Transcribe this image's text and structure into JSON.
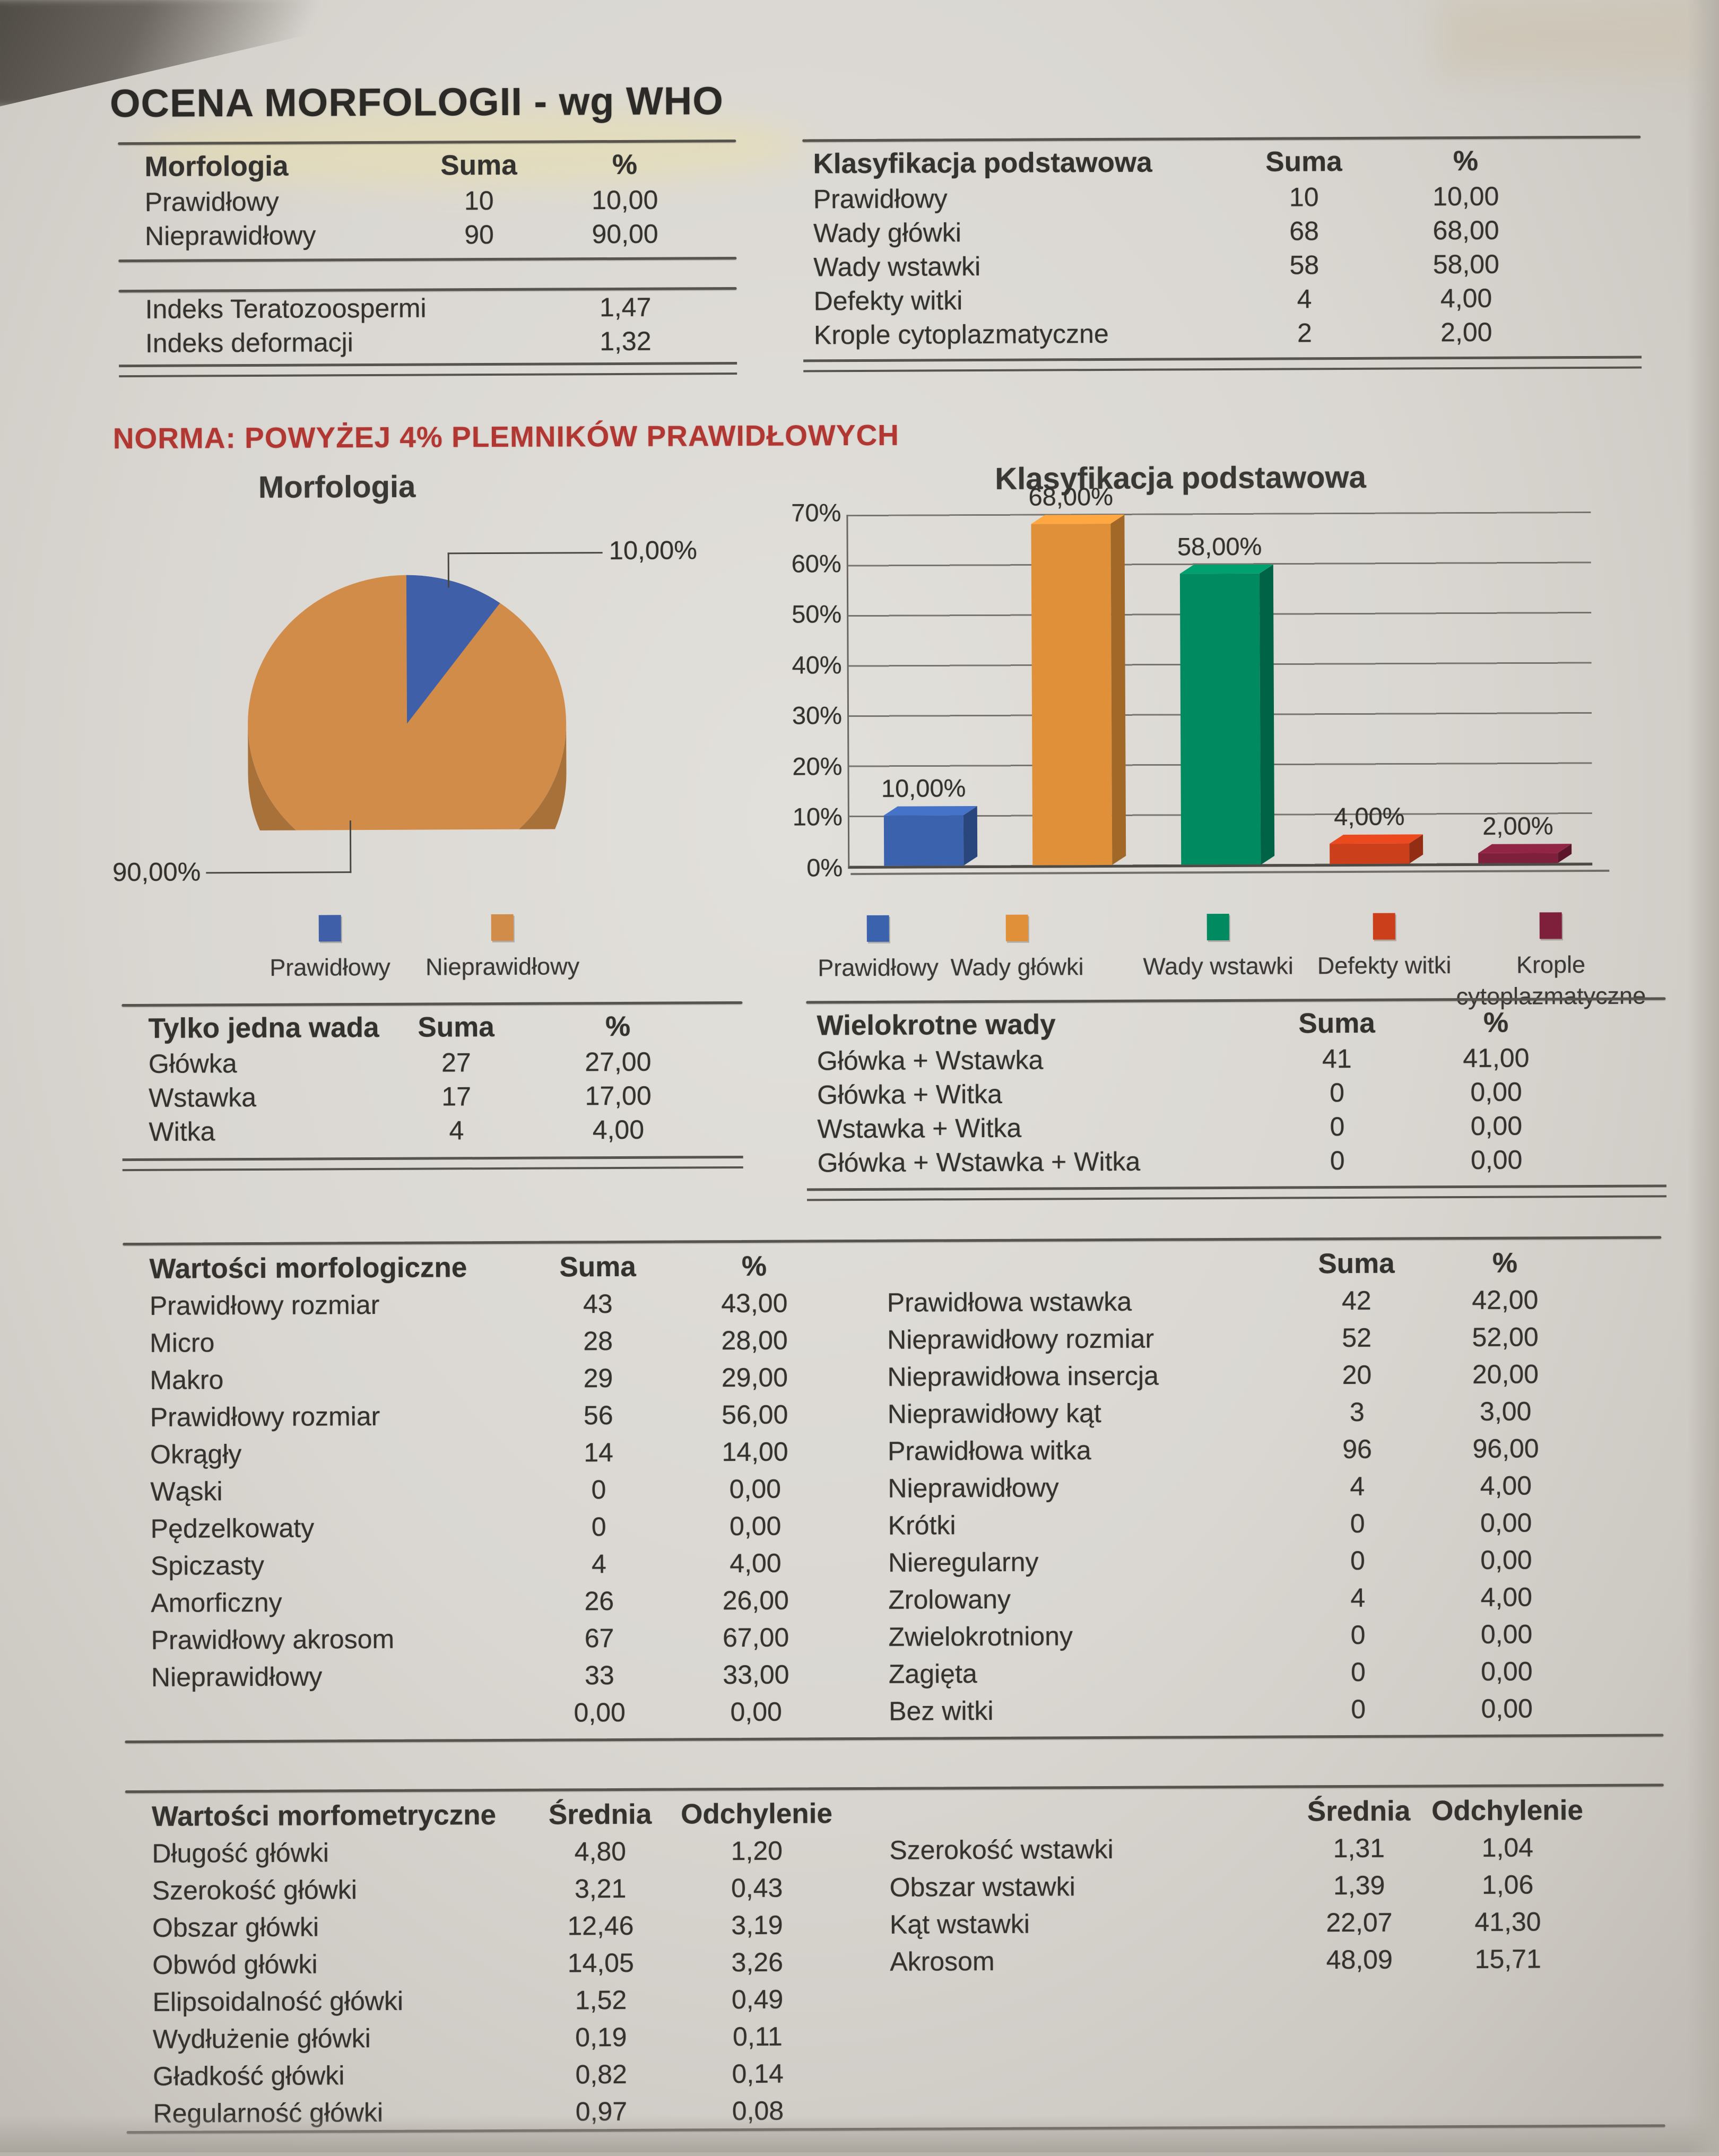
{
  "page": {
    "title": "OCENA MORFOLOGII - wg WHO",
    "norm_note": "NORMA: POWYŻEJ 4% PLEMNIKÓW PRAWIDŁOWYCH"
  },
  "colors": {
    "rule": "#57534d",
    "red_text": "#b13733",
    "pie_blue": "#3f5fa8",
    "pie_orange": "#d28c4a",
    "pie_side": "#a9713a"
  },
  "tables": {
    "morfologia": {
      "headers": [
        "Morfologia",
        "Suma",
        "%"
      ],
      "rows": [
        [
          "Prawidłowy",
          "10",
          "10,00"
        ],
        [
          "Nieprawidłowy",
          "90",
          "90,00"
        ]
      ],
      "indexes": [
        [
          "Indeks Teratozoospermi",
          "1,47"
        ],
        [
          "Indeks deformacji",
          "1,32"
        ]
      ]
    },
    "klasyfikacja": {
      "headers": [
        "Klasyfikacja podstawowa",
        "Suma",
        "%"
      ],
      "rows": [
        [
          "Prawidłowy",
          "10",
          "10,00"
        ],
        [
          "Wady główki",
          "68",
          "68,00"
        ],
        [
          "Wady wstawki",
          "58",
          "58,00"
        ],
        [
          "Defekty witki",
          "4",
          "4,00"
        ],
        [
          "Krople cytoplazmatyczne",
          "2",
          "2,00"
        ]
      ]
    },
    "jedna_wada": {
      "headers": [
        "Tylko jedna wada",
        "Suma",
        "%"
      ],
      "rows": [
        [
          "Główka",
          "27",
          "27,00"
        ],
        [
          "Wstawka",
          "17",
          "17,00"
        ],
        [
          "Witka",
          "4",
          "4,00"
        ]
      ]
    },
    "wielokrotne": {
      "headers": [
        "Wielokrotne wady",
        "Suma",
        "%"
      ],
      "rows": [
        [
          "Główka + Wstawka",
          "41",
          "41,00"
        ],
        [
          "Główka + Witka",
          "0",
          "0,00"
        ],
        [
          "Wstawka + Witka",
          "0",
          "0,00"
        ],
        [
          "Główka + Wstawka + Witka",
          "0",
          "0,00"
        ]
      ]
    },
    "morfologiczne": {
      "title": "Wartości morfologiczne",
      "headers": [
        "Suma",
        "%"
      ],
      "left": [
        [
          "Prawidłowy rozmiar",
          "43",
          "43,00"
        ],
        [
          "Micro",
          "28",
          "28,00"
        ],
        [
          "Makro",
          "29",
          "29,00"
        ],
        [
          "Prawidłowy rozmiar",
          "56",
          "56,00"
        ],
        [
          "Okrągły",
          "14",
          "14,00"
        ],
        [
          "Wąski",
          "0",
          "0,00"
        ],
        [
          "Pędzelkowaty",
          "0",
          "0,00"
        ],
        [
          "Spiczasty",
          "4",
          "4,00"
        ],
        [
          "Amorficzny",
          "26",
          "26,00"
        ],
        [
          "Prawidłowy akrosom",
          "67",
          "67,00"
        ],
        [
          "Nieprawidłowy",
          "33",
          "33,00"
        ],
        [
          "",
          "0,00",
          "0,00"
        ]
      ],
      "right": [
        [
          "Prawidłowa wstawka",
          "42",
          "42,00"
        ],
        [
          "Nieprawidłowy rozmiar",
          "52",
          "52,00"
        ],
        [
          "Nieprawidłowa insercja",
          "20",
          "20,00"
        ],
        [
          "Nieprawidłowy kąt",
          "3",
          "3,00"
        ],
        [
          "Prawidłowa witka",
          "96",
          "96,00"
        ],
        [
          "Nieprawidłowy",
          "4",
          "4,00"
        ],
        [
          "Krótki",
          "0",
          "0,00"
        ],
        [
          "Nieregularny",
          "0",
          "0,00"
        ],
        [
          "Zrolowany",
          "4",
          "4,00"
        ],
        [
          "Zwielokrotniony",
          "0",
          "0,00"
        ],
        [
          "Zagięta",
          "0",
          "0,00"
        ],
        [
          "Bez witki",
          "0",
          "0,00"
        ]
      ]
    },
    "morfometryczne": {
      "title": "Wartości morfometryczne",
      "headers": [
        "Średnia",
        "Odchylenie"
      ],
      "left": [
        [
          "Długość główki",
          "4,80",
          "1,20"
        ],
        [
          "Szerokość główki",
          "3,21",
          "0,43"
        ],
        [
          "Obszar główki",
          "12,46",
          "3,19"
        ],
        [
          "Obwód główki",
          "14,05",
          "3,26"
        ],
        [
          "Elipsoidalność główki",
          "1,52",
          "0,49"
        ],
        [
          "Wydłużenie główki",
          "0,19",
          "0,11"
        ],
        [
          "Gładkość główki",
          "0,82",
          "0,14"
        ],
        [
          "Regularność główki",
          "0,97",
          "0,08"
        ]
      ],
      "right": [
        [
          "Szerokość wstawki",
          "1,31",
          "1,04"
        ],
        [
          "Obszar wstawki",
          "1,39",
          "1,06"
        ],
        [
          "Kąt wstawki",
          "22,07",
          "41,30"
        ],
        [
          "Akrosom",
          "48,09",
          "15,71"
        ]
      ]
    }
  },
  "chart_data": [
    {
      "type": "pie",
      "title": "Morfologia",
      "labels": [
        "Prawidłowy",
        "Nieprawidłowy"
      ],
      "values": [
        10,
        90
      ],
      "value_labels": [
        "10,00%",
        "90,00%"
      ],
      "colors": [
        "#3f5fa8",
        "#d28c4a"
      ],
      "side_color": "#a9713a",
      "legend_position": "bottom",
      "style": "3d"
    },
    {
      "type": "bar",
      "title": "Klasyfikacja podstawowa",
      "categories": [
        "Prawidłowy",
        "Wady główki",
        "Wady wstawki",
        "Defekty witki",
        "Krople cytoplazmatyczne"
      ],
      "values": [
        10,
        68,
        58,
        4,
        2
      ],
      "value_labels": [
        "10,00%",
        "68,00%",
        "58,00%",
        "4,00%",
        "2,00%"
      ],
      "colors": [
        "#3b63ad",
        "#e09038",
        "#008a60",
        "#cc3f1b",
        "#7e1f3c"
      ],
      "ylabel_ticks": [
        "70%",
        "60%",
        "50%",
        "40%",
        "30%",
        "20%",
        "10%",
        "0%"
      ],
      "ylim": [
        0,
        70
      ],
      "grid": true,
      "legend_position": "bottom",
      "style": "3d"
    }
  ]
}
